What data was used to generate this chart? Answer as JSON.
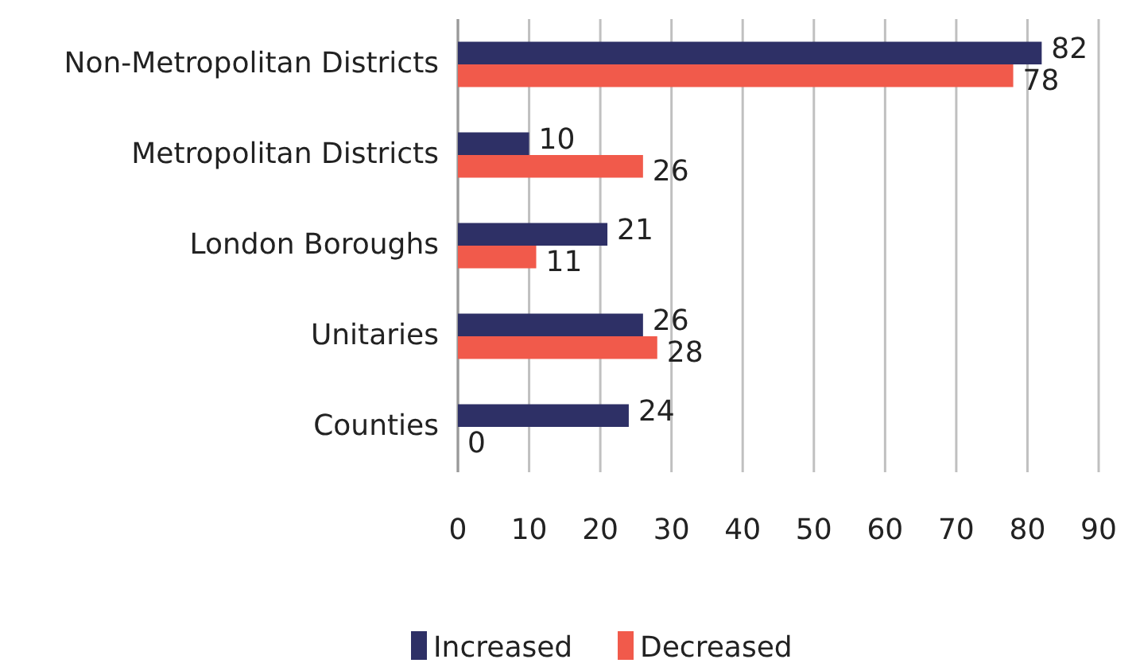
{
  "chart_data": {
    "type": "bar",
    "orientation": "horizontal",
    "categories": [
      "Non-Metropolitan Districts",
      "Metropolitan Districts",
      "London Boroughs",
      "Unitaries",
      "Counties"
    ],
    "series": [
      {
        "name": "Increased",
        "color": "#2e3066",
        "values": [
          82,
          10,
          21,
          26,
          24
        ]
      },
      {
        "name": "Decreased",
        "color": "#f15a4b",
        "values": [
          78,
          26,
          11,
          28,
          0
        ]
      }
    ],
    "xlim": [
      0,
      90
    ],
    "xticks": [
      0,
      10,
      20,
      30,
      40,
      50,
      60,
      70,
      80,
      90
    ],
    "grid": "x",
    "legend": "bottom",
    "data_labels": true
  }
}
